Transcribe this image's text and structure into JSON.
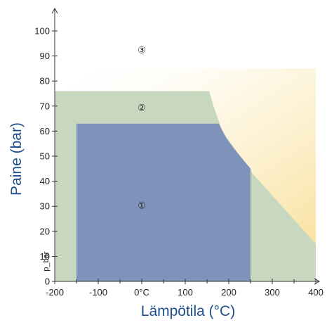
{
  "chart_data": {
    "type": "area",
    "xlabel": "Lämpötila (°C)",
    "ylabel": "Paine (bar)",
    "x_ticks": [
      {
        "value": -200,
        "label": "-200"
      },
      {
        "value": -100,
        "label": "-100"
      },
      {
        "value": 0,
        "label": "0°C"
      },
      {
        "value": 100,
        "label": "100"
      },
      {
        "value": 200,
        "label": "200"
      },
      {
        "value": 300,
        "label": "300"
      },
      {
        "value": 400,
        "label": "400"
      }
    ],
    "y_ticks": [
      {
        "value": 0,
        "label": "0"
      },
      {
        "value": 10,
        "label": "10"
      },
      {
        "value": 20,
        "label": "20"
      },
      {
        "value": 30,
        "label": "30"
      },
      {
        "value": 40,
        "label": "40"
      },
      {
        "value": 50,
        "label": "50"
      },
      {
        "value": 60,
        "label": "60"
      },
      {
        "value": 70,
        "label": "70"
      },
      {
        "value": 80,
        "label": "80"
      },
      {
        "value": 90,
        "label": "90"
      },
      {
        "value": 100,
        "label": "100"
      }
    ],
    "xlim": [
      -200,
      400
    ],
    "ylim": [
      0,
      100
    ],
    "y_marker_label": "p_bar",
    "regions": [
      {
        "name": "3",
        "label": "③",
        "color": "#fbe7b0",
        "polygon": [
          [
            -200,
            85
          ],
          [
            400,
            85
          ],
          [
            400,
            15
          ],
          [
            -200,
            15
          ]
        ],
        "label_at": [
          0,
          92.5
        ]
      },
      {
        "name": "2",
        "label": "②",
        "color": "#c8d8bf",
        "polygon": [
          [
            -200,
            0
          ],
          [
            -200,
            76
          ],
          [
            155,
            76
          ],
          [
            165,
            70
          ],
          [
            185,
            60
          ],
          [
            210,
            54
          ],
          [
            255,
            43
          ],
          [
            400,
            15
          ],
          [
            400,
            0
          ]
        ],
        "label_at": [
          0,
          69.5
        ]
      },
      {
        "name": "1",
        "label": "①",
        "color": "#7f93ba",
        "polygon": [
          [
            -150,
            0
          ],
          [
            -150,
            63
          ],
          [
            177,
            63
          ],
          [
            195,
            57
          ],
          [
            212,
            53
          ],
          [
            250,
            45
          ],
          [
            250,
            0
          ]
        ],
        "label_at": [
          0,
          30.5
        ]
      }
    ]
  }
}
